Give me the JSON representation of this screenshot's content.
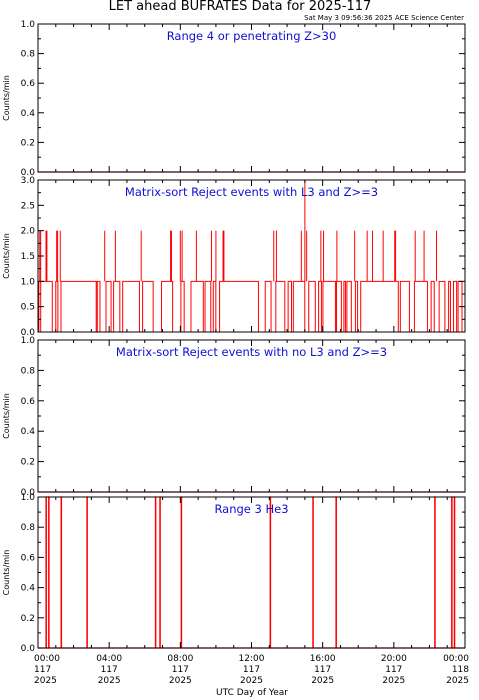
{
  "title": "LET ahead BUFRATES Data for 2025-117",
  "timestamp": "Sat May  3 09:56:36 2025 ACE Science Center",
  "xlabel": "UTC Day of Year",
  "colors": {
    "data": "#ff0000",
    "panel_title": "#1010d0",
    "axes": "#000000"
  },
  "chart_data": [
    {
      "type": "line",
      "title": "Range 4 or   penetrating Z>30",
      "ylabel": "Counts/min",
      "ylim": [
        0,
        1
      ],
      "yticks": [
        "0.0",
        "0.2",
        "0.4",
        "0.6",
        "0.8",
        "1.0"
      ],
      "xlim": [
        0,
        24
      ],
      "spikes": []
    },
    {
      "type": "line",
      "title": "Matrix-sort Reject events with L3 and Z>=3",
      "ylabel": "Counts/min",
      "ylim": [
        0,
        3
      ],
      "yticks": [
        "0.0",
        "0.5",
        "1.0",
        "1.5",
        "2.0",
        "2.5",
        "3.0"
      ],
      "xlim": [
        0,
        24
      ],
      "spikes_value_2": [
        0.1,
        0.15,
        0.45,
        0.5,
        1.05,
        1.1,
        1.25,
        3.75,
        4.35,
        5.8,
        7.45,
        7.5,
        8.0,
        8.1,
        8.9,
        9.75,
        10.0,
        10.4,
        10.45,
        13.25,
        13.4,
        14.8,
        15.1,
        15.9,
        16.05,
        16.8,
        17.8,
        18.5,
        18.8,
        19.4,
        20.05,
        20.1,
        21.2,
        21.7,
        22.4
      ],
      "spikes_value_3": [
        15.0
      ]
    },
    {
      "type": "line",
      "title": "Matrix-sort Reject events with no L3 and Z>=3",
      "ylabel": "Counts/min",
      "ylim": [
        0,
        1
      ],
      "yticks": [
        "0.0",
        "0.2",
        "0.4",
        "0.6",
        "0.8",
        "1.0"
      ],
      "xlim": [
        0,
        24
      ],
      "spikes": []
    },
    {
      "type": "line",
      "title": "Range 3 He3",
      "ylabel": "Counts/min",
      "ylim": [
        0,
        1
      ],
      "yticks": [
        "0.0",
        "0.2",
        "0.4",
        "0.6",
        "0.8",
        "1.0"
      ],
      "xlim": [
        0,
        24
      ],
      "spikes": [
        0.45,
        0.6,
        1.3,
        2.75,
        6.6,
        6.85,
        8.05,
        13.05,
        15.45,
        16.75,
        22.3,
        23.25,
        23.4
      ]
    }
  ],
  "xticks": [
    {
      "time": "00:00",
      "doy": "117",
      "year": "2025"
    },
    {
      "time": "04:00",
      "doy": "117",
      "year": "2025"
    },
    {
      "time": "08:00",
      "doy": "117",
      "year": "2025"
    },
    {
      "time": "12:00",
      "doy": "117",
      "year": "2025"
    },
    {
      "time": "16:00",
      "doy": "117",
      "year": "2025"
    },
    {
      "time": "20:00",
      "doy": "117",
      "year": "2025"
    },
    {
      "time": "00:00",
      "doy": "118",
      "year": "2025"
    }
  ]
}
